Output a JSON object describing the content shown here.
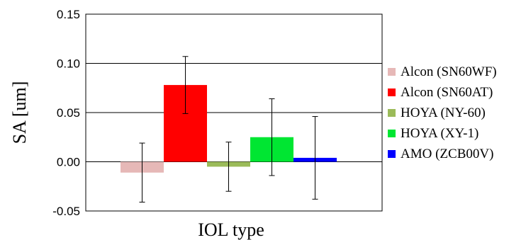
{
  "chart_data": {
    "type": "bar",
    "title": "",
    "xlabel": "IOL type",
    "ylabel": "SA [um]",
    "ylim": [
      -0.05,
      0.15
    ],
    "yticks": [
      "-0.05",
      "0.00",
      "0.05",
      "0.10",
      "0.15"
    ],
    "ytick_values": [
      -0.05,
      0.0,
      0.05,
      0.1,
      0.15
    ],
    "grid": true,
    "legend_position": "right",
    "series": [
      {
        "name": "Alcon (SN60WF)",
        "value": -0.011,
        "error": 0.03,
        "color": "#e6b8b7"
      },
      {
        "name": "Alcon (SN60AT)",
        "value": 0.078,
        "error": 0.029,
        "color": "#ff0000"
      },
      {
        "name": "HOYA (NY-60)",
        "value": -0.005,
        "error": 0.025,
        "color": "#9bbb59"
      },
      {
        "name": "HOYA (XY-1)",
        "value": 0.025,
        "error": 0.039,
        "color": "#00e632"
      },
      {
        "name": "AMO (ZCB00V)",
        "value": 0.004,
        "error": 0.042,
        "color": "#0000ff"
      }
    ]
  }
}
